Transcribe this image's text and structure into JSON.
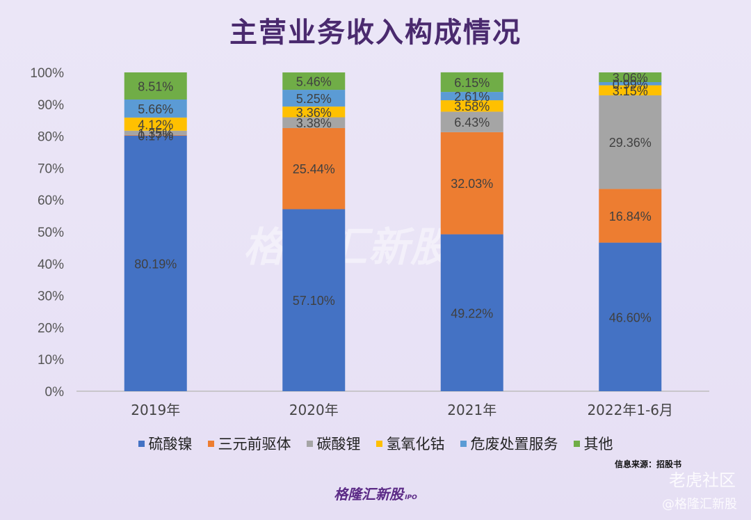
{
  "page": {
    "title": "主营业务收入构成情况",
    "source": "信息来源：招股书",
    "brand": "格隆汇新股",
    "brand_suffix": "IPO",
    "watermark_center": "格隆汇新股",
    "watermark_center_suffix": "IPO",
    "watermark_right": "老虎社区",
    "watermark_right2": "@格隆汇新股"
  },
  "chart_data": {
    "type": "bar",
    "stacked": true,
    "categories": [
      "2019年",
      "2020年",
      "2021年",
      "2022年1-6月"
    ],
    "y_ticks": [
      "0%",
      "10%",
      "20%",
      "30%",
      "40%",
      "50%",
      "60%",
      "70%",
      "80%",
      "90%",
      "100%"
    ],
    "ylim": [
      0,
      100
    ],
    "grid": false,
    "legend_position": "bottom",
    "series": [
      {
        "name": "硫酸镍",
        "color": "#4472c4",
        "values": [
          80.19,
          57.1,
          49.22,
          46.6
        ],
        "labels": [
          "80.19%",
          "57.10%",
          "49.22%",
          "46.60%"
        ]
      },
      {
        "name": "三元前驱体",
        "color": "#ed7d31",
        "values": [
          0.17,
          25.44,
          32.03,
          16.84
        ],
        "labels": [
          "0.17%",
          "25.44%",
          "32.03%",
          "16.84%"
        ]
      },
      {
        "name": "碳酸锂",
        "color": "#a5a5a5",
        "values": [
          1.35,
          3.38,
          6.43,
          29.36
        ],
        "labels": [
          "1.35%",
          "3.38%",
          "6.43%",
          "29.36%"
        ]
      },
      {
        "name": "氢氧化钴",
        "color": "#ffc000",
        "values": [
          4.12,
          3.36,
          3.58,
          3.15
        ],
        "labels": [
          "4.12%",
          "3.36%",
          "3.58%",
          "3.15%"
        ]
      },
      {
        "name": "危废处置服务",
        "color": "#5b9bd5",
        "values": [
          5.66,
          5.25,
          2.61,
          0.99
        ],
        "labels": [
          "5.66%",
          "5.25%",
          "2.61%",
          "0.99%"
        ]
      },
      {
        "name": "其他",
        "color": "#70ad47",
        "values": [
          8.51,
          5.46,
          6.15,
          3.06
        ],
        "labels": [
          "8.51%",
          "5.46%",
          "6.15%",
          "3.06%"
        ]
      }
    ]
  }
}
